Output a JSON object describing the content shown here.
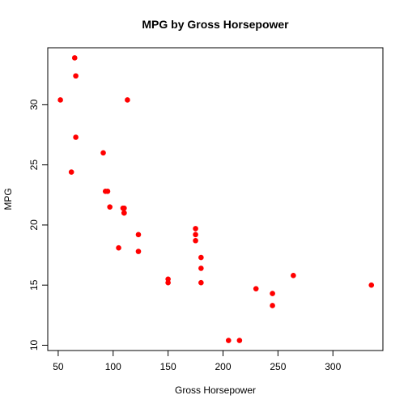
{
  "chart_data": {
    "type": "scatter",
    "title": "MPG by Gross Horsepower",
    "xlabel": "Gross Horsepower",
    "ylabel": "MPG",
    "xlim": [
      40.5,
      345.5
    ],
    "ylim": [
      9.56,
      34.74
    ],
    "xticks": [
      50,
      100,
      150,
      200,
      250,
      300
    ],
    "yticks": [
      10,
      15,
      20,
      25,
      30
    ],
    "grid": false,
    "point_color": "#ff0000",
    "points": [
      {
        "x": 110,
        "y": 21.0
      },
      {
        "x": 110,
        "y": 21.0
      },
      {
        "x": 93,
        "y": 22.8
      },
      {
        "x": 110,
        "y": 21.4
      },
      {
        "x": 175,
        "y": 18.7
      },
      {
        "x": 105,
        "y": 18.1
      },
      {
        "x": 245,
        "y": 14.3
      },
      {
        "x": 62,
        "y": 24.4
      },
      {
        "x": 95,
        "y": 22.8
      },
      {
        "x": 123,
        "y": 19.2
      },
      {
        "x": 123,
        "y": 17.8
      },
      {
        "x": 180,
        "y": 16.4
      },
      {
        "x": 180,
        "y": 17.3
      },
      {
        "x": 180,
        "y": 15.2
      },
      {
        "x": 205,
        "y": 10.4
      },
      {
        "x": 215,
        "y": 10.4
      },
      {
        "x": 230,
        "y": 14.7
      },
      {
        "x": 66,
        "y": 32.4
      },
      {
        "x": 52,
        "y": 30.4
      },
      {
        "x": 65,
        "y": 33.9
      },
      {
        "x": 97,
        "y": 21.5
      },
      {
        "x": 150,
        "y": 15.5
      },
      {
        "x": 150,
        "y": 15.2
      },
      {
        "x": 245,
        "y": 13.3
      },
      {
        "x": 175,
        "y": 19.2
      },
      {
        "x": 66,
        "y": 27.3
      },
      {
        "x": 91,
        "y": 26.0
      },
      {
        "x": 113,
        "y": 30.4
      },
      {
        "x": 264,
        "y": 15.8
      },
      {
        "x": 175,
        "y": 19.7
      },
      {
        "x": 335,
        "y": 15.0
      },
      {
        "x": 109,
        "y": 21.4
      }
    ]
  }
}
